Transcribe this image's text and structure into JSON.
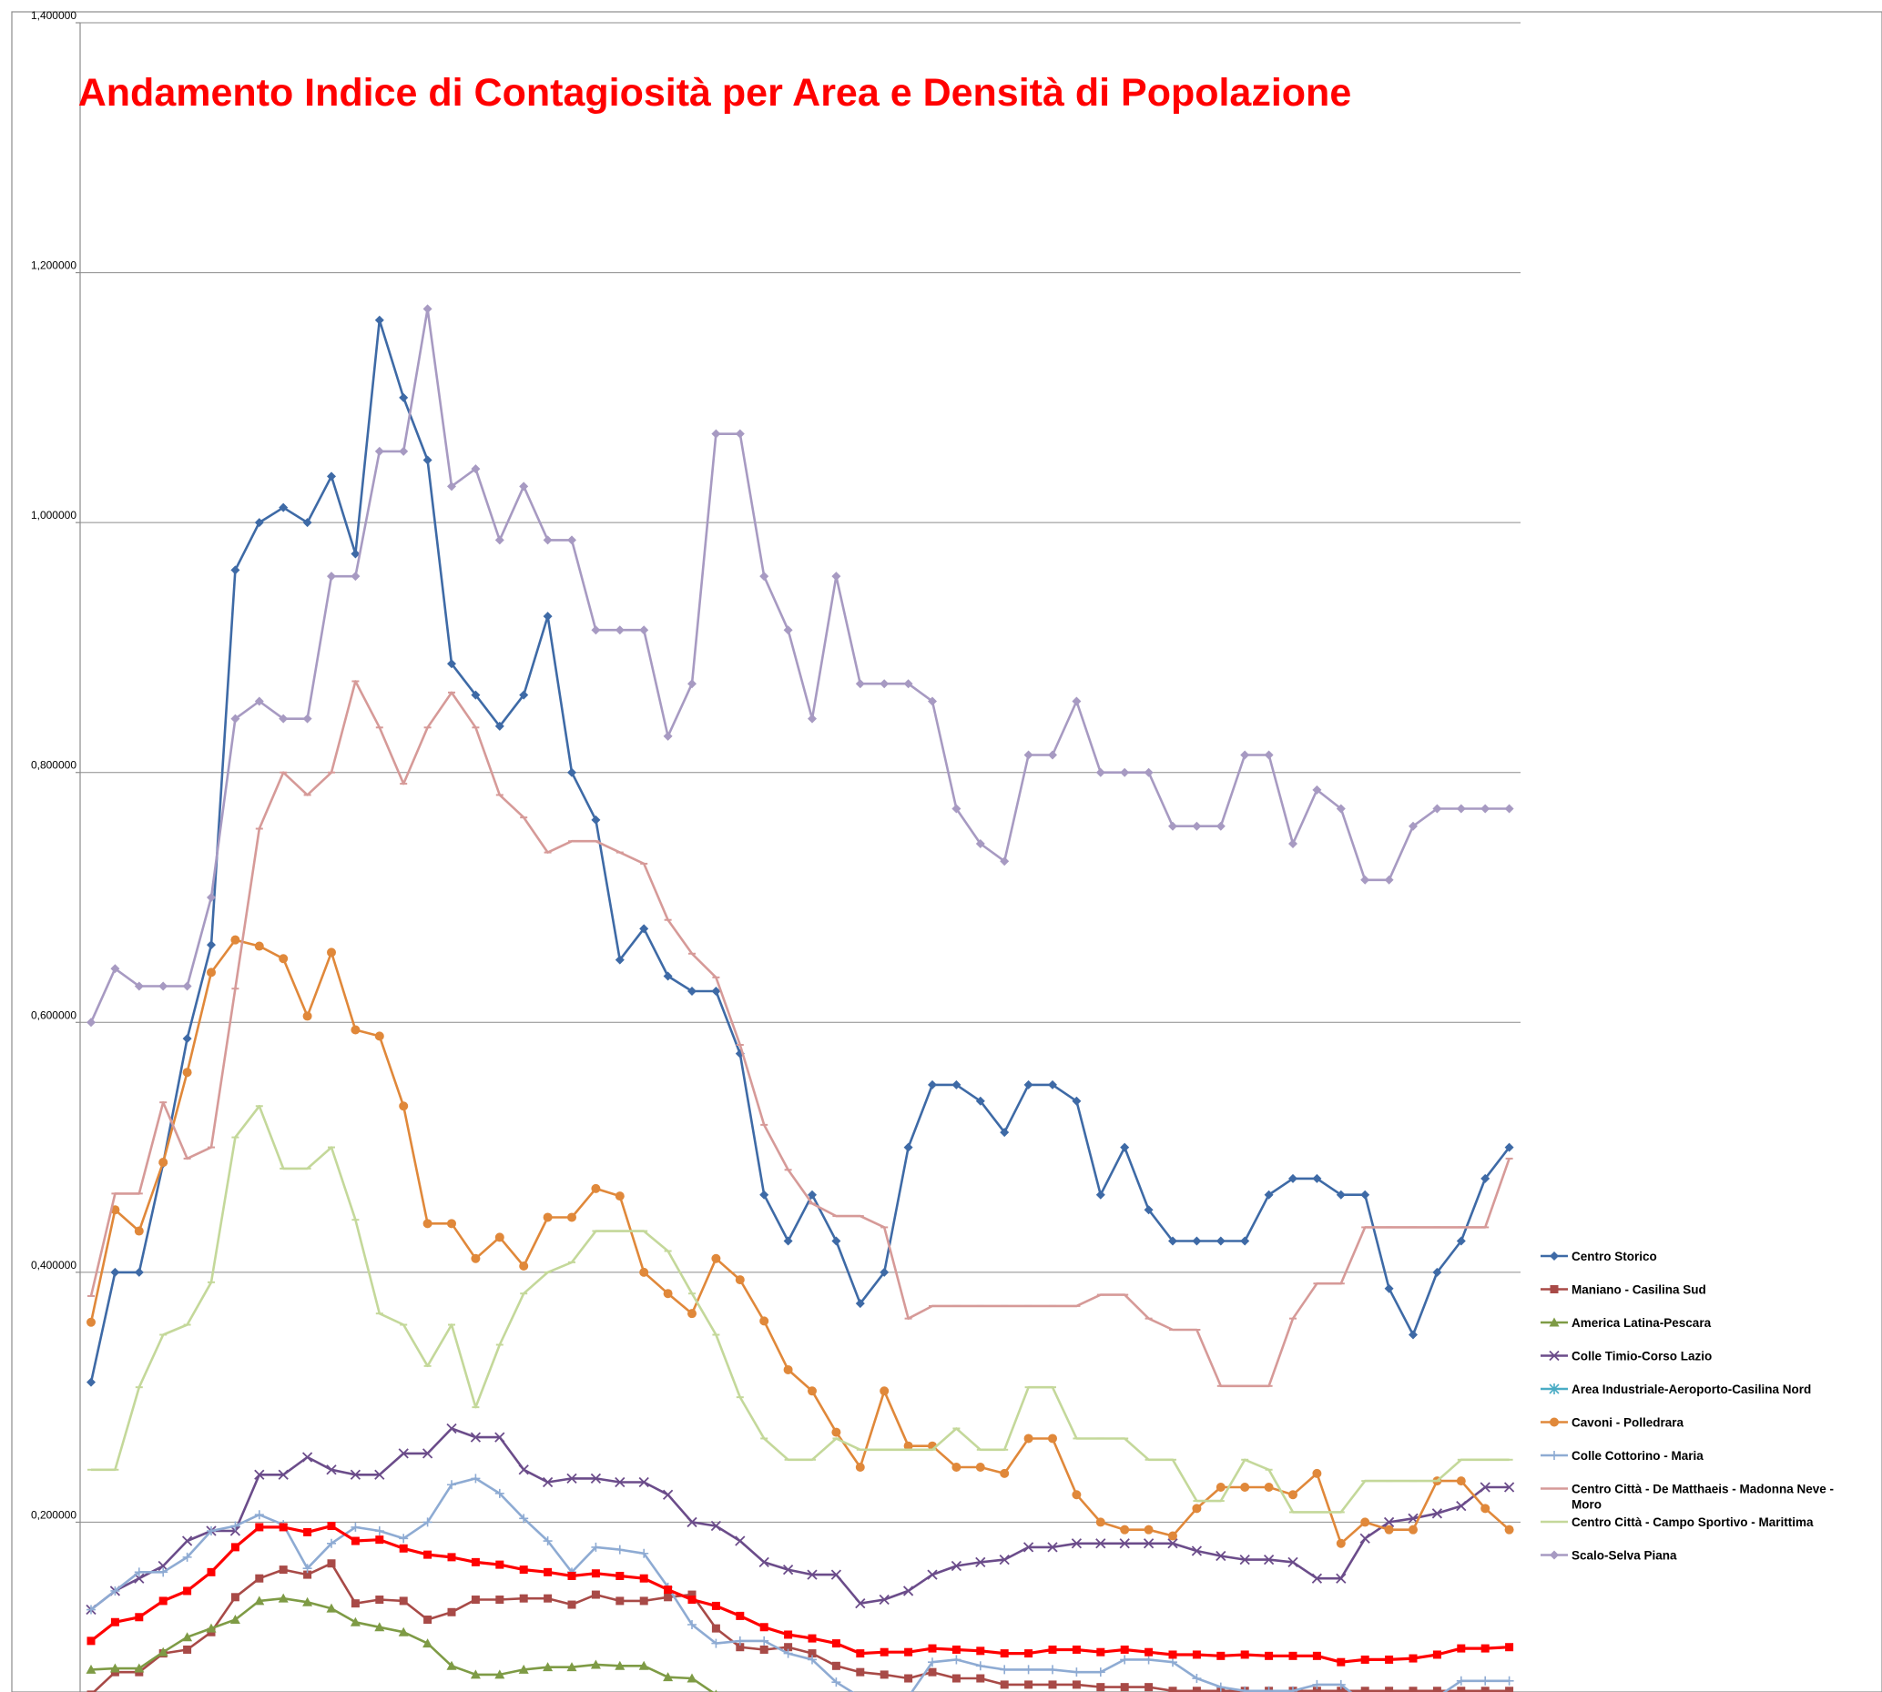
{
  "chart_data": {
    "type": "line",
    "title": "Andamento Indice di Contagiosità per Area e Densità di Popolazione",
    "xlabel": "",
    "ylabel": "",
    "ylim": [
      0,
      1.4
    ],
    "visible_min": 0.065,
    "y_ticks": [
      {
        "value": 0.2,
        "label": "0,200000"
      },
      {
        "value": 0.4,
        "label": "0,400000"
      },
      {
        "value": 0.6,
        "label": "0,600000"
      },
      {
        "value": 0.8,
        "label": "0,800000"
      },
      {
        "value": 1.0,
        "label": "1,000000"
      },
      {
        "value": 1.2,
        "label": "1,200000"
      },
      {
        "value": 1.4,
        "label": "1,400000"
      }
    ],
    "grid": true,
    "legend_position": "right",
    "x_count": 60,
    "series": [
      {
        "name": "Centro Storico",
        "color": "#3e6aa6",
        "marker": "diamond",
        "values": [
          0.312,
          0.4,
          0.4,
          0.487,
          0.587,
          0.662,
          0.962,
          1.0,
          1.012,
          1.0,
          1.037,
          0.975,
          1.162,
          1.1,
          1.05,
          0.887,
          0.862,
          0.837,
          0.862,
          0.925,
          0.8,
          0.762,
          0.65,
          0.675,
          0.637,
          0.625,
          0.625,
          0.575,
          0.462,
          0.425,
          0.462,
          0.425,
          0.375,
          0.4,
          0.5,
          0.55,
          0.55,
          0.537,
          0.512,
          0.55,
          0.55,
          0.537,
          0.462,
          0.5,
          0.45,
          0.425,
          0.425,
          0.425,
          0.425,
          0.462,
          0.475,
          0.475,
          0.462,
          0.462,
          0.387,
          0.35,
          0.4,
          0.425,
          0.475,
          0.5
        ]
      },
      {
        "name": "Maniano - Casilina Sud",
        "color": "#a84a47",
        "marker": "square",
        "values": [
          0.062,
          0.08,
          0.08,
          0.095,
          0.098,
          0.112,
          0.14,
          0.155,
          0.162,
          0.158,
          0.167,
          0.135,
          0.138,
          0.137,
          0.122,
          0.128,
          0.138,
          0.138,
          0.139,
          0.139,
          0.134,
          0.142,
          0.137,
          0.137,
          0.14,
          0.142,
          0.115,
          0.1,
          0.098,
          0.1,
          0.095,
          0.085,
          0.08,
          0.078,
          0.075,
          0.08,
          0.075,
          0.075,
          0.07,
          0.07,
          0.07,
          0.07,
          0.068,
          0.068,
          0.068,
          0.065,
          0.065,
          0.065,
          0.065,
          0.065,
          0.065,
          0.065,
          0.065,
          0.065,
          0.065,
          0.065,
          0.065,
          0.065,
          0.065,
          0.065
        ]
      },
      {
        "name": "America Latina-Pescara",
        "color": "#7e9b45",
        "marker": "triangle",
        "values": [
          0.082,
          0.083,
          0.083,
          0.096,
          0.108,
          0.115,
          0.122,
          0.137,
          0.139,
          0.136,
          0.131,
          0.12,
          0.116,
          0.112,
          0.103,
          0.085,
          0.078,
          0.078,
          0.082,
          0.084,
          0.084,
          0.086,
          0.085,
          0.085,
          0.076,
          0.075,
          0.062,
          0.055,
          0.05,
          0.05,
          0.05,
          0.05,
          0.05,
          0.05,
          0.05,
          0.05,
          0.05,
          0.05,
          0.05,
          0.05,
          0.05,
          0.05,
          0.05,
          0.05,
          0.05,
          0.05,
          0.05,
          0.05,
          0.05,
          0.05,
          0.05,
          0.05,
          0.05,
          0.05,
          0.05,
          0.05,
          0.05,
          0.05,
          0.05,
          0.05
        ]
      },
      {
        "name": "Colle Timio-Corso Lazio",
        "color": "#6b4c8a",
        "marker": "x",
        "values": [
          0.13,
          0.145,
          0.155,
          0.165,
          0.185,
          0.193,
          0.193,
          0.238,
          0.238,
          0.252,
          0.242,
          0.238,
          0.238,
          0.255,
          0.255,
          0.275,
          0.268,
          0.268,
          0.242,
          0.232,
          0.235,
          0.235,
          0.232,
          0.232,
          0.222,
          0.2,
          0.197,
          0.185,
          0.168,
          0.162,
          0.158,
          0.158,
          0.135,
          0.138,
          0.145,
          0.158,
          0.165,
          0.168,
          0.17,
          0.18,
          0.18,
          0.183,
          0.183,
          0.183,
          0.183,
          0.183,
          0.177,
          0.173,
          0.17,
          0.17,
          0.168,
          0.155,
          0.155,
          0.187,
          0.2,
          0.203,
          0.207,
          0.213,
          0.228,
          0.228
        ]
      },
      {
        "name": "Area Industriale-Aeroporto-Casilina Nord",
        "color": "#4aacc5",
        "marker": "star",
        "values": [
          0.05,
          0.05,
          0.05,
          0.05,
          0.05,
          0.05,
          0.05,
          0.05,
          0.05,
          0.05,
          0.05,
          0.05,
          0.05,
          0.05,
          0.05,
          0.05,
          0.05,
          0.05,
          0.05,
          0.05,
          0.05,
          0.05,
          0.05,
          0.05,
          0.05,
          0.05,
          0.05,
          0.05,
          0.05,
          0.05,
          0.05,
          0.05,
          0.05,
          0.05,
          0.05,
          0.05,
          0.05,
          0.05,
          0.05,
          0.05,
          0.05,
          0.05,
          0.05,
          0.05,
          0.05,
          0.05,
          0.05,
          0.05,
          0.05,
          0.05,
          0.05,
          0.05,
          0.05,
          0.05,
          0.05,
          0.05,
          0.05,
          0.05,
          0.05,
          0.05
        ]
      },
      {
        "name": "Cavoni - Polledrara",
        "color": "#e0883a",
        "marker": "circle",
        "values": [
          0.36,
          0.45,
          0.433,
          0.488,
          0.56,
          0.64,
          0.666,
          0.661,
          0.651,
          0.605,
          0.656,
          0.594,
          0.589,
          0.533,
          0.439,
          0.439,
          0.411,
          0.428,
          0.405,
          0.444,
          0.444,
          0.467,
          0.461,
          0.4,
          0.383,
          0.367,
          0.411,
          0.394,
          0.361,
          0.322,
          0.305,
          0.272,
          0.244,
          0.305,
          0.261,
          0.261,
          0.244,
          0.244,
          0.239,
          0.267,
          0.267,
          0.222,
          0.2,
          0.194,
          0.194,
          0.189,
          0.211,
          0.228,
          0.228,
          0.228,
          0.222,
          0.239,
          0.183,
          0.2,
          0.194,
          0.194,
          0.233,
          0.233,
          0.211,
          0.194
        ]
      },
      {
        "name": "Colle Cottorino - Maria",
        "color": "#8eabd3",
        "marker": "plus",
        "values": [
          0.13,
          0.145,
          0.16,
          0.16,
          0.172,
          0.193,
          0.197,
          0.206,
          0.198,
          0.163,
          0.183,
          0.196,
          0.193,
          0.187,
          0.2,
          0.23,
          0.235,
          0.223,
          0.203,
          0.185,
          0.16,
          0.18,
          0.178,
          0.175,
          0.148,
          0.118,
          0.103,
          0.105,
          0.105,
          0.095,
          0.09,
          0.072,
          0.06,
          0.06,
          0.06,
          0.088,
          0.09,
          0.085,
          0.082,
          0.082,
          0.082,
          0.08,
          0.08,
          0.09,
          0.09,
          0.088,
          0.075,
          0.068,
          0.065,
          0.065,
          0.065,
          0.07,
          0.07,
          0.055,
          0.055,
          0.06,
          0.06,
          0.073,
          0.073,
          0.073
        ]
      },
      {
        "name": "Centro Città - De Matthaeis - Madonna Neve - Moro",
        "color": "#d69a98",
        "marker": "dash",
        "values": [
          0.381,
          0.463,
          0.463,
          0.536,
          0.491,
          0.5,
          0.627,
          0.755,
          0.8,
          0.782,
          0.8,
          0.873,
          0.836,
          0.791,
          0.836,
          0.864,
          0.836,
          0.782,
          0.764,
          0.736,
          0.745,
          0.745,
          0.736,
          0.727,
          0.682,
          0.655,
          0.636,
          0.582,
          0.518,
          0.482,
          0.455,
          0.445,
          0.445,
          0.436,
          0.363,
          0.373,
          0.373,
          0.373,
          0.373,
          0.373,
          0.373,
          0.373,
          0.382,
          0.382,
          0.363,
          0.354,
          0.354,
          0.309,
          0.309,
          0.309,
          0.363,
          0.391,
          0.391,
          0.436,
          0.436,
          0.436,
          0.436,
          0.436,
          0.436,
          0.491
        ]
      },
      {
        "name": "Centro Città - Campo Sportivo - Marittima",
        "color": "#c4d89a",
        "marker": "dash",
        "values": [
          0.242,
          0.242,
          0.308,
          0.35,
          0.358,
          0.392,
          0.508,
          0.533,
          0.483,
          0.483,
          0.5,
          0.442,
          0.367,
          0.358,
          0.325,
          0.358,
          0.292,
          0.342,
          0.383,
          0.4,
          0.408,
          0.433,
          0.433,
          0.433,
          0.417,
          0.383,
          0.35,
          0.3,
          0.267,
          0.25,
          0.25,
          0.267,
          0.258,
          0.258,
          0.258,
          0.258,
          0.275,
          0.258,
          0.258,
          0.308,
          0.308,
          0.267,
          0.267,
          0.267,
          0.25,
          0.25,
          0.217,
          0.217,
          0.25,
          0.242,
          0.208,
          0.208,
          0.208,
          0.233,
          0.233,
          0.233,
          0.233,
          0.25,
          0.25,
          0.25
        ]
      },
      {
        "name": "Scalo-Selva Piana",
        "color": "#a79ac2",
        "marker": "diamond",
        "values": [
          0.6,
          0.643,
          0.629,
          0.629,
          0.629,
          0.7,
          0.843,
          0.857,
          0.843,
          0.843,
          0.957,
          0.957,
          1.057,
          1.057,
          1.171,
          1.029,
          1.043,
          0.986,
          1.029,
          0.986,
          0.986,
          0.914,
          0.914,
          0.914,
          0.829,
          0.871,
          1.071,
          1.071,
          0.957,
          0.914,
          0.843,
          0.957,
          0.871,
          0.871,
          0.871,
          0.857,
          0.771,
          0.743,
          0.729,
          0.814,
          0.814,
          0.857,
          0.8,
          0.8,
          0.8,
          0.757,
          0.757,
          0.757,
          0.814,
          0.814,
          0.743,
          0.786,
          0.771,
          0.714,
          0.714,
          0.757,
          0.771,
          0.771,
          0.771,
          0.771
        ]
      },
      {
        "name": "",
        "color": "#ff0000",
        "marker": "square",
        "values": [
          0.105,
          0.12,
          0.124,
          0.137,
          0.145,
          0.16,
          0.18,
          0.196,
          0.196,
          0.192,
          0.197,
          0.185,
          0.186,
          0.179,
          0.174,
          0.172,
          0.168,
          0.166,
          0.162,
          0.16,
          0.157,
          0.159,
          0.157,
          0.155,
          0.146,
          0.138,
          0.133,
          0.125,
          0.116,
          0.11,
          0.107,
          0.103,
          0.095,
          0.096,
          0.096,
          0.099,
          0.098,
          0.097,
          0.095,
          0.095,
          0.098,
          0.098,
          0.096,
          0.098,
          0.096,
          0.094,
          0.094,
          0.093,
          0.094,
          0.093,
          0.093,
          0.093,
          0.088,
          0.09,
          0.09,
          0.091,
          0.094,
          0.099,
          0.099,
          0.1
        ]
      }
    ]
  }
}
